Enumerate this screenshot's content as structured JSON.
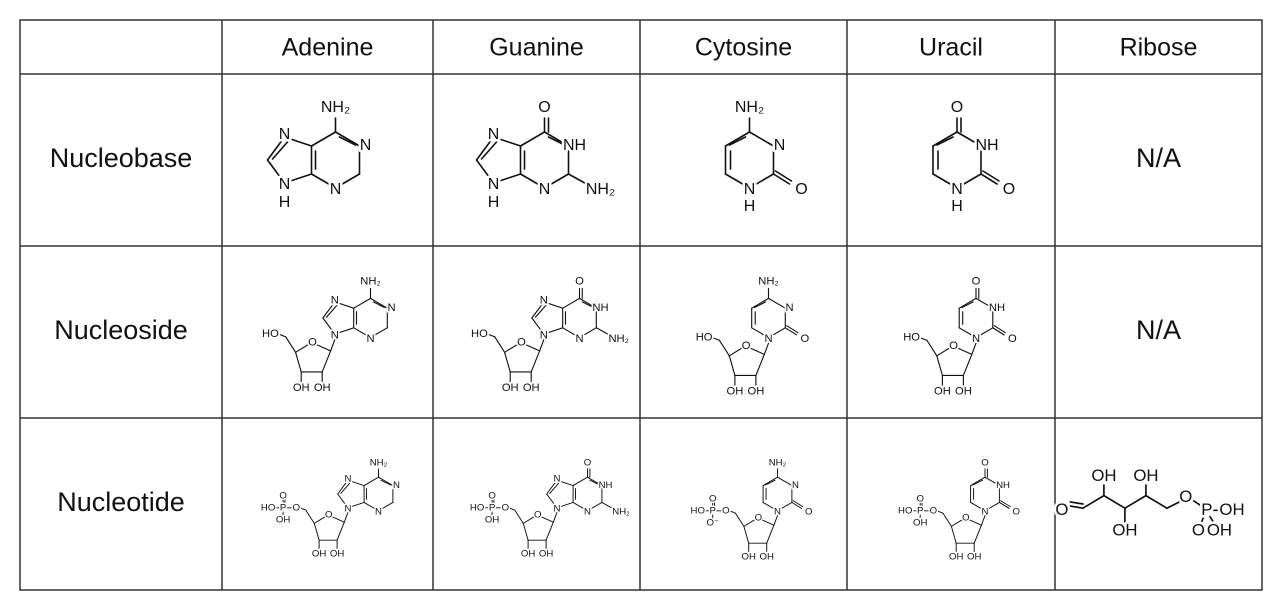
{
  "table": {
    "columns": [
      "Adenine",
      "Guanine",
      "Cytosine",
      "Uracil",
      "Ribose"
    ],
    "rows": [
      {
        "label": "Nucleobase",
        "cells": [
          {
            "atoms": [
              "NH₂",
              "N",
              "N",
              "N",
              "N",
              "H"
            ]
          },
          {
            "atoms": [
              "O",
              "NH",
              "N",
              "NH₂",
              "N",
              "N",
              "H"
            ]
          },
          {
            "atoms": [
              "NH₂",
              "N",
              "N",
              "H",
              "O"
            ]
          },
          {
            "atoms": [
              "O",
              "NH",
              "N",
              "H",
              "O"
            ]
          },
          {
            "text": "N/A"
          }
        ]
      },
      {
        "label": "Nucleoside",
        "cells": [
          {
            "atoms": [
              "NH₂",
              "N",
              "N",
              "N",
              "N",
              "O",
              "HO",
              "OH",
              "OH"
            ]
          },
          {
            "atoms": [
              "O",
              "NH",
              "N",
              "NH₂",
              "N",
              "N",
              "O",
              "HO",
              "OH",
              "OH"
            ]
          },
          {
            "atoms": [
              "NH₂",
              "N",
              "N",
              "O",
              "O",
              "HO",
              "OH",
              "OH"
            ]
          },
          {
            "atoms": [
              "O",
              "NH",
              "N",
              "O",
              "O",
              "HO",
              "OH",
              "OH"
            ]
          },
          {
            "text": "N/A"
          }
        ]
      },
      {
        "label": "Nucleotide",
        "cells": [
          {
            "atoms": [
              "NH₂",
              "N",
              "N",
              "N",
              "N",
              "O",
              "O",
              "P",
              "O",
              "OH",
              "HO",
              "OH",
              "OH"
            ]
          },
          {
            "atoms": [
              "O",
              "NH",
              "N",
              "NH₂",
              "N",
              "N",
              "O",
              "O",
              "P",
              "O",
              "OH",
              "HO",
              "OH",
              "OH"
            ]
          },
          {
            "atoms": [
              "NH₂",
              "N",
              "N",
              "O",
              "O",
              "O",
              "P",
              "O",
              "O⁻",
              "HO",
              "OH",
              "OH"
            ]
          },
          {
            "atoms": [
              "O",
              "NH",
              "N",
              "O",
              "O",
              "O",
              "P",
              "O",
              "OH",
              "HO",
              "OH",
              "OH"
            ]
          },
          {
            "atoms": [
              "O",
              "OH",
              "OH",
              "OH",
              "O",
              "P",
              "OH",
              "O",
              "OH"
            ]
          }
        ]
      }
    ]
  }
}
